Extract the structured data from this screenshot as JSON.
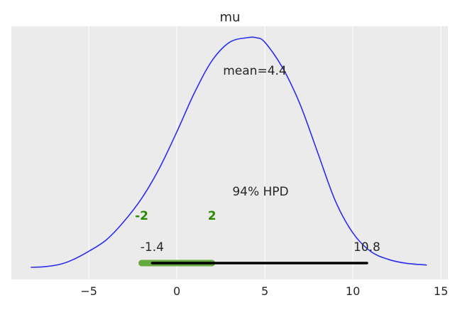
{
  "chart_data": {
    "type": "area",
    "title": "mu",
    "xlabel": "",
    "ylabel": "",
    "xlim": [
      -9.4,
      15.4
    ],
    "ylim": [
      0,
      1
    ],
    "grid": true,
    "x_ticks": [
      -5,
      0,
      5,
      10,
      15
    ],
    "x_tick_labels": [
      "−5",
      "0",
      "5",
      "10",
      "15"
    ],
    "series": [
      {
        "x": [
          -8.3,
          -7.5,
          -6.7,
          -6.0,
          -5.0,
          -4.0,
          -3.0,
          -2.0,
          -1.0,
          0.0,
          1.0,
          2.0,
          3.0,
          4.0,
          4.5,
          5.0,
          6.0,
          7.0,
          8.0,
          9.0,
          10.0,
          11.0,
          12.0,
          13.0,
          14.2
        ],
        "y": [
          0.0,
          0.003,
          0.012,
          0.03,
          0.07,
          0.12,
          0.2,
          0.3,
          0.43,
          0.59,
          0.76,
          0.9,
          0.98,
          1.0,
          1.0,
          0.98,
          0.87,
          0.71,
          0.5,
          0.29,
          0.15,
          0.07,
          0.035,
          0.018,
          0.01
        ],
        "color": "#2a2eec"
      }
    ],
    "point_estimate": {
      "value": 4.4,
      "label": "mean=4.4"
    },
    "hpd": {
      "label": "94% HPD",
      "lower": -1.4,
      "upper": 10.8,
      "lower_label": "-1.4",
      "upper_label": "10.8",
      "color": "#000000"
    },
    "rope": {
      "lower": -2,
      "upper": 2,
      "lower_label": "-2",
      "upper_label": "2",
      "color": "#66a840",
      "label_color": "#2a8a00"
    },
    "colors": {
      "plot_background": "#ebebeb",
      "grid": "#ffffff",
      "text": "#262626"
    }
  }
}
